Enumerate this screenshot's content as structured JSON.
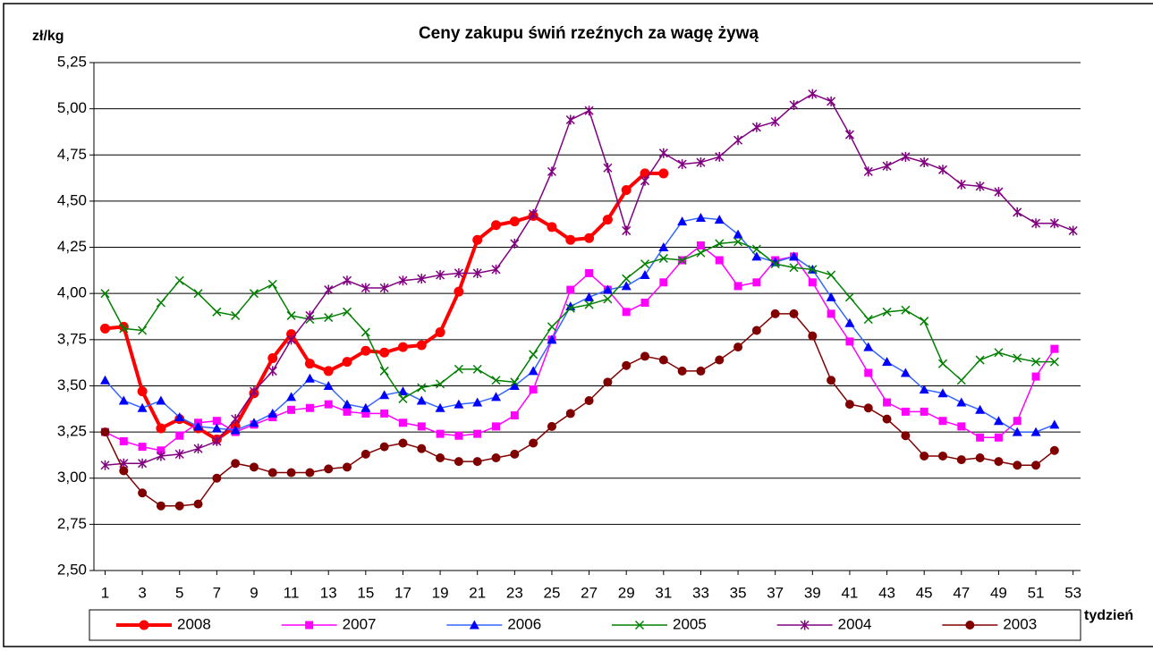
{
  "chart_data": {
    "type": "line",
    "title": "Ceny zakupu świń rzeźnych za wagę żywą",
    "y_label": "zł/kg",
    "x_label": "tydzień",
    "x": [
      1,
      2,
      3,
      4,
      5,
      6,
      7,
      8,
      9,
      10,
      11,
      12,
      13,
      14,
      15,
      16,
      17,
      18,
      19,
      20,
      21,
      22,
      23,
      24,
      25,
      26,
      27,
      28,
      29,
      30,
      31,
      32,
      33,
      34,
      35,
      36,
      37,
      38,
      39,
      40,
      41,
      42,
      43,
      44,
      45,
      46,
      47,
      48,
      49,
      50,
      51,
      52,
      53
    ],
    "xlim": [
      0.4,
      53.4
    ],
    "xticks": [
      1,
      3,
      5,
      7,
      9,
      11,
      13,
      15,
      17,
      19,
      21,
      23,
      25,
      27,
      29,
      31,
      33,
      35,
      37,
      39,
      41,
      43,
      45,
      47,
      49,
      51,
      53
    ],
    "ylim": [
      2.5,
      5.25
    ],
    "yticks": [
      {
        "value": 2.5,
        "label": "2,50"
      },
      {
        "value": 2.75,
        "label": "2,75"
      },
      {
        "value": 3.0,
        "label": "3,00"
      },
      {
        "value": 3.25,
        "label": "3,25"
      },
      {
        "value": 3.5,
        "label": "3,50"
      },
      {
        "value": 3.75,
        "label": "3,75"
      },
      {
        "value": 4.0,
        "label": "4,00"
      },
      {
        "value": 4.25,
        "label": "4,25"
      },
      {
        "value": 4.5,
        "label": "4,50"
      },
      {
        "value": 4.75,
        "label": "4,75"
      },
      {
        "value": 5.0,
        "label": "5,00"
      },
      {
        "value": 5.25,
        "label": "5,25"
      }
    ],
    "grid": true,
    "legend": "bottom",
    "series": [
      {
        "name": "2008",
        "color": "#ff0000",
        "marker": "circle",
        "values": [
          3.81,
          3.82,
          3.47,
          3.27,
          3.32,
          3.27,
          3.21,
          3.28,
          3.46,
          3.65,
          3.78,
          3.62,
          3.58,
          3.63,
          3.69,
          3.68,
          3.71,
          3.72,
          3.79,
          4.01,
          4.29,
          4.37,
          4.39,
          4.42,
          4.36,
          4.29,
          4.3,
          4.4,
          4.56,
          4.65,
          4.65,
          null,
          null,
          null,
          null,
          null,
          null,
          null,
          null,
          null,
          null,
          null,
          null,
          null,
          null,
          null,
          null,
          null,
          null,
          null,
          null,
          null,
          null
        ]
      },
      {
        "name": "2007",
        "color": "#ff00ff",
        "marker": "square",
        "values": [
          3.25,
          3.2,
          3.17,
          3.15,
          3.23,
          3.3,
          3.31,
          3.25,
          3.29,
          3.33,
          3.37,
          3.38,
          3.4,
          3.36,
          3.35,
          3.35,
          3.3,
          3.28,
          3.24,
          3.23,
          3.24,
          3.28,
          3.34,
          3.48,
          3.75,
          4.02,
          4.11,
          4.02,
          3.9,
          3.95,
          4.06,
          4.18,
          4.26,
          4.18,
          4.04,
          4.06,
          4.18,
          4.2,
          4.06,
          3.89,
          3.74,
          3.57,
          3.41,
          3.36,
          3.36,
          3.31,
          3.28,
          3.22,
          3.22,
          3.31,
          3.55,
          3.7,
          null
        ]
      },
      {
        "name": "2006",
        "color": "#0000ff",
        "marker": "triangle",
        "values": [
          3.53,
          3.42,
          3.38,
          3.42,
          3.33,
          3.28,
          3.27,
          3.26,
          3.3,
          3.35,
          3.44,
          3.54,
          3.5,
          3.4,
          3.38,
          3.45,
          3.47,
          3.42,
          3.38,
          3.4,
          3.41,
          3.44,
          3.5,
          3.58,
          3.75,
          3.93,
          3.98,
          4.02,
          4.04,
          4.1,
          4.25,
          4.39,
          4.41,
          4.4,
          4.32,
          4.2,
          4.17,
          4.2,
          4.13,
          3.98,
          3.84,
          3.71,
          3.63,
          3.57,
          3.48,
          3.46,
          3.41,
          3.37,
          3.31,
          3.25,
          3.25,
          3.29,
          null
        ]
      },
      {
        "name": "2005",
        "color": "#008000",
        "marker": "x",
        "values": [
          4.0,
          3.81,
          3.8,
          3.95,
          4.07,
          4.0,
          3.9,
          3.88,
          4.0,
          4.05,
          3.88,
          3.86,
          3.87,
          3.9,
          3.79,
          3.58,
          3.43,
          3.49,
          3.51,
          3.59,
          3.59,
          3.53,
          3.52,
          3.67,
          3.82,
          3.92,
          3.94,
          3.97,
          4.08,
          4.16,
          4.19,
          4.18,
          4.22,
          4.27,
          4.28,
          4.24,
          4.16,
          4.14,
          4.13,
          4.1,
          3.98,
          3.86,
          3.9,
          3.91,
          3.85,
          3.62,
          3.53,
          3.64,
          3.68,
          3.65,
          3.63,
          3.63,
          null
        ]
      },
      {
        "name": "2004",
        "color": "#800080",
        "marker": "star",
        "values": [
          3.07,
          3.08,
          3.08,
          3.12,
          3.13,
          3.16,
          3.2,
          3.32,
          3.47,
          3.58,
          3.75,
          3.88,
          4.02,
          4.07,
          4.03,
          4.03,
          4.07,
          4.08,
          4.1,
          4.11,
          4.11,
          4.13,
          4.27,
          4.43,
          4.66,
          4.94,
          4.99,
          4.68,
          4.34,
          4.61,
          4.76,
          4.7,
          4.71,
          4.74,
          4.83,
          4.9,
          4.93,
          5.02,
          5.08,
          5.04,
          4.86,
          4.66,
          4.69,
          4.74,
          4.71,
          4.67,
          4.59,
          4.58,
          4.55,
          4.44,
          4.38,
          4.38,
          4.34
        ]
      },
      {
        "name": "2003",
        "color": "#800000",
        "marker": "circle",
        "values": [
          3.25,
          3.04,
          2.92,
          2.85,
          2.85,
          2.86,
          3.0,
          3.08,
          3.06,
          3.03,
          3.03,
          3.03,
          3.05,
          3.06,
          3.13,
          3.17,
          3.19,
          3.16,
          3.11,
          3.09,
          3.09,
          3.11,
          3.13,
          3.19,
          3.28,
          3.35,
          3.42,
          3.52,
          3.61,
          3.66,
          3.64,
          3.58,
          3.58,
          3.64,
          3.71,
          3.8,
          3.89,
          3.89,
          3.77,
          3.53,
          3.4,
          3.38,
          3.32,
          3.23,
          3.12,
          3.12,
          3.1,
          3.11,
          3.09,
          3.07,
          3.07,
          3.15,
          null
        ]
      }
    ]
  }
}
